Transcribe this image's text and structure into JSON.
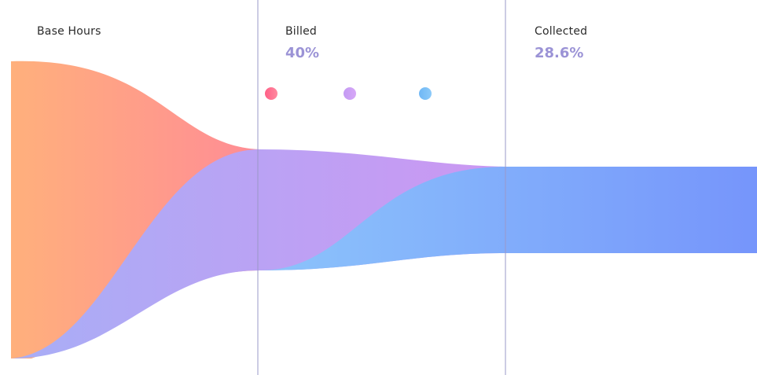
{
  "chart_data": {
    "type": "funnel",
    "title": "",
    "stages": [
      {
        "name": "Base Hours",
        "value_label": ""
      },
      {
        "name": "Billed",
        "value_label": "40%"
      },
      {
        "name": "Collected",
        "value_label": "28.6%"
      }
    ],
    "series": [
      {
        "values": [
          100,
          40,
          28.6
        ],
        "color_start": "#ffb07c",
        "color_end": "#ff8c95"
      },
      {
        "values": [
          100,
          40,
          28.6
        ],
        "color_start": "#a8aef6",
        "color_end": "#c39af3"
      },
      {
        "values": [
          100,
          40,
          28.6
        ],
        "color_start": "#8cc4fb",
        "color_end": "#7695fb"
      }
    ],
    "legend": {
      "placement": "top-center",
      "dot_colors": [
        "#ff5f86",
        "#c39af3",
        "#6fb7f5"
      ]
    },
    "grid": false,
    "colors": {
      "divider": "#9a98c8",
      "value_text": "#9b93d6"
    }
  }
}
